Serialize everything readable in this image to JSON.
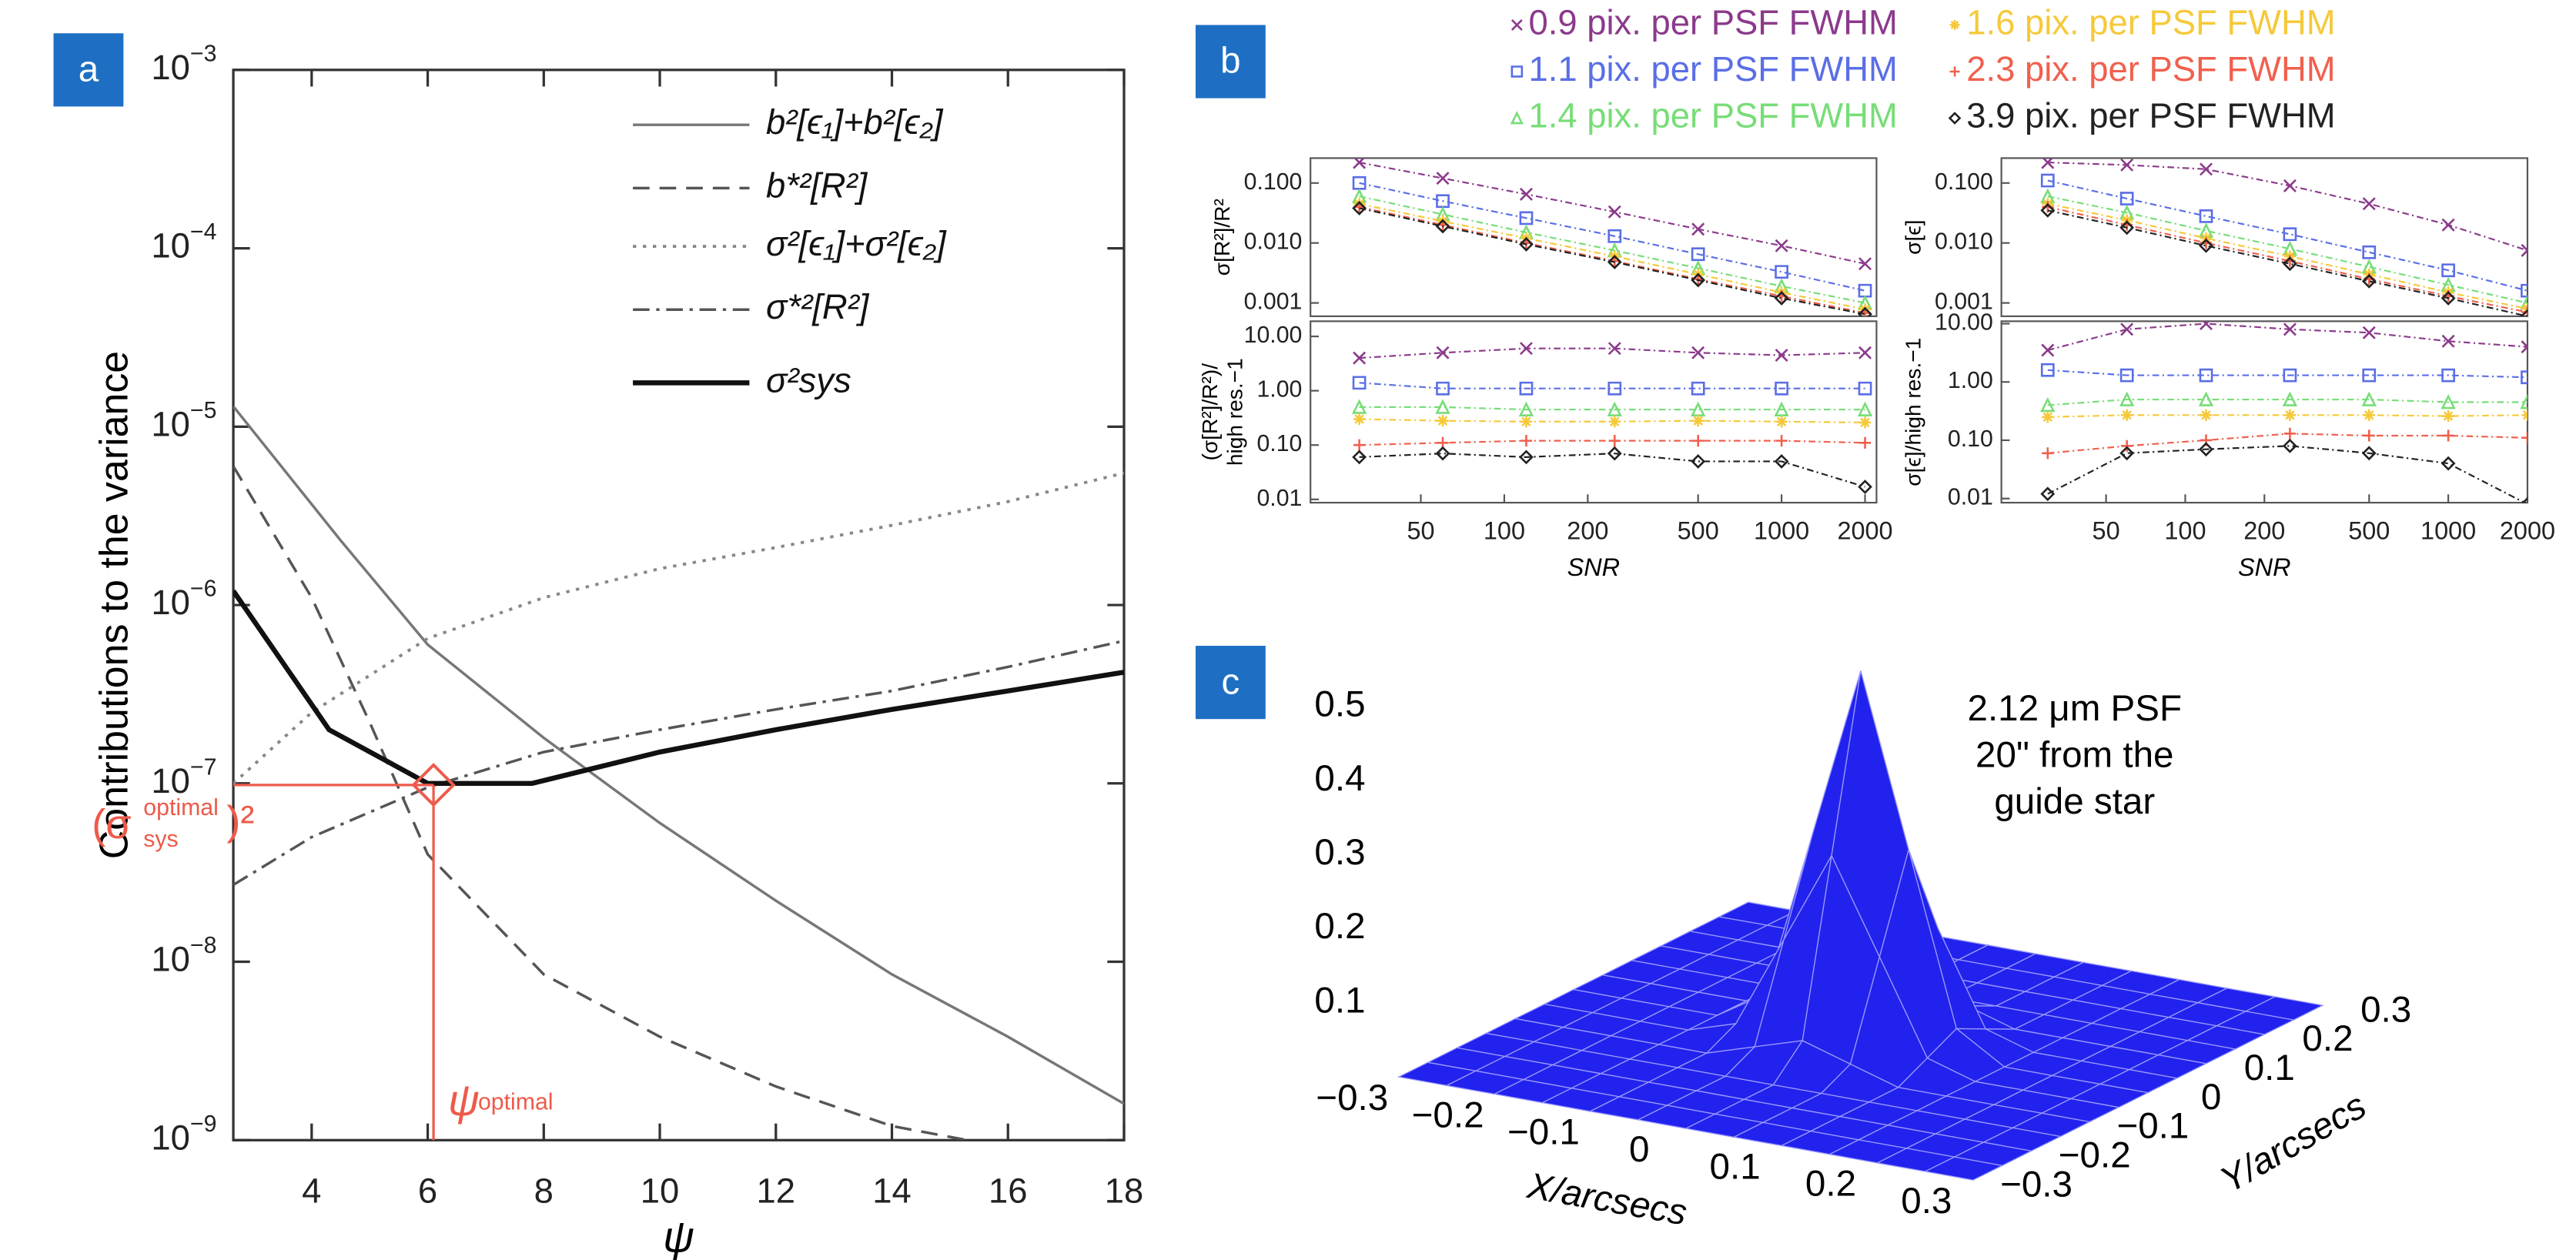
{
  "chart_data": [
    {
      "type": "line",
      "panel": "a",
      "xlabel": "ψ",
      "ylabel": "Contributions to the variance",
      "xlim": [
        2.65,
        18
      ],
      "ylim": [
        1e-09,
        0.001
      ],
      "log_y": true,
      "xticks": [
        4,
        6,
        8,
        10,
        12,
        14,
        16,
        18
      ],
      "yticks": [
        {
          "value": 0.001,
          "label": "10−3"
        },
        {
          "value": 0.0001,
          "label": "10−4"
        },
        {
          "value": 1e-05,
          "label": "10−5"
        },
        {
          "value": 1e-06,
          "label": "10−6"
        },
        {
          "value": 1e-07,
          "label": "10−7"
        },
        {
          "value": 1e-08,
          "label": "10−8"
        },
        {
          "value": 1e-09,
          "label": "10−9"
        }
      ],
      "series": [
        {
          "name": "b²[ϵ₁]+b²[ϵ₂]",
          "color": "#777777",
          "dash": "solid",
          "width": 1.6,
          "x": [
            2.65,
            4.5,
            6,
            8,
            10,
            12,
            14,
            16,
            18
          ],
          "values": [
            1.3e-05,
            2.3e-06,
            6e-07,
            1.8e-07,
            6e-08,
            2.2e-08,
            8.5e-09,
            3.8e-09,
            1.6e-09
          ]
        },
        {
          "name": "b*²[R²]",
          "color": "#555555",
          "dash": "dashed",
          "width": 1.6,
          "x": [
            2.65,
            4,
            5,
            6,
            8,
            10,
            12,
            14,
            15.3
          ],
          "values": [
            6e-06,
            1.1e-06,
            2.2e-07,
            4e-08,
            8.5e-09,
            3.8e-09,
            2e-09,
            1.2e-09,
            1e-09
          ]
        },
        {
          "name": "σ²[ϵ₁]+σ²[ϵ₂]",
          "color": "#888888",
          "dash": "dotted",
          "width": 1.8,
          "x": [
            2.65,
            4,
            6,
            8,
            10,
            12,
            14,
            16,
            18
          ],
          "values": [
            1e-07,
            2.5e-07,
            6.5e-07,
            1.1e-06,
            1.6e-06,
            2.1e-06,
            2.8e-06,
            3.8e-06,
            5.5e-06
          ]
        },
        {
          "name": "σ*²[R²]",
          "color": "#555555",
          "dash": "dashdot",
          "width": 1.6,
          "x": [
            2.65,
            4,
            6,
            8,
            10,
            12,
            14,
            16,
            18
          ],
          "values": [
            2.7e-08,
            5e-08,
            9.5e-08,
            1.5e-07,
            2e-07,
            2.6e-07,
            3.3e-07,
            4.5e-07,
            6.3e-07
          ]
        },
        {
          "name": "σ²sys",
          "color": "#111111",
          "dash": "solid",
          "width": 3,
          "x": [
            2.65,
            4.3,
            6,
            7.8,
            10,
            12,
            14,
            16,
            18
          ],
          "values": [
            1.2e-06,
            2e-07,
            1e-07,
            1e-07,
            1.5e-07,
            2e-07,
            2.6e-07,
            3.3e-07,
            4.2e-07
          ]
        }
      ],
      "optimum": {
        "x": 6.1,
        "y": 9.8e-08,
        "color": "#ee5a4a"
      },
      "annotations": [
        {
          "text": "(σ",
          "sup": "optimal",
          "sub": "sys",
          "tail": ")²"
        },
        {
          "text": "ψ",
          "sub": "optimal"
        }
      ]
    },
    {
      "type": "line",
      "panel": "b",
      "legend": "top",
      "ylabel": [
        "σ[R²]/R²"
      ],
      "xlim": [
        20,
        2200
      ],
      "ylim": [
        0.0006,
        0.26
      ],
      "log_x": true,
      "log_y": true,
      "yticks": [
        {
          "value": 0.001,
          "label": "0.001"
        },
        {
          "value": 0.01,
          "label": "0.010"
        },
        {
          "value": 0.1,
          "label": "0.100"
        }
      ],
      "x": [
        30,
        60,
        120,
        250,
        500,
        1000,
        2000
      ],
      "series": [
        {
          "name": "0.9 pix. per PSF FWHM",
          "color": "#8b3a8b",
          "marker": "x",
          "values": [
            0.22,
            0.12,
            0.065,
            0.033,
            0.017,
            0.009,
            0.0045
          ]
        },
        {
          "name": "1.1 pix. per PSF FWHM",
          "color": "#5a6ee6",
          "marker": "square",
          "values": [
            0.1,
            0.05,
            0.026,
            0.013,
            0.0065,
            0.0033,
            0.0016
          ]
        },
        {
          "name": "1.4 pix. per PSF FWHM",
          "color": "#77dd77",
          "marker": "triangle",
          "values": [
            0.06,
            0.03,
            0.015,
            0.0075,
            0.0038,
            0.0019,
            0.001
          ]
        },
        {
          "name": "1.6 pix. per PSF FWHM",
          "color": "#f5c93a",
          "marker": "star",
          "values": [
            0.045,
            0.023,
            0.012,
            0.006,
            0.003,
            0.0015,
            0.00078
          ]
        },
        {
          "name": "2.3 pix. per PSF FWHM",
          "color": "#f0604e",
          "marker": "plus",
          "values": [
            0.04,
            0.02,
            0.01,
            0.005,
            0.0025,
            0.0013,
            0.00068
          ]
        },
        {
          "name": "3.9 pix. per PSF FWHM",
          "color": "#222222",
          "marker": "diamond",
          "values": [
            0.038,
            0.019,
            0.0095,
            0.0048,
            0.0024,
            0.0012,
            0.00065
          ]
        }
      ]
    },
    {
      "type": "line",
      "ylabel": [
        "(σ[R²]/R²)/",
        "high res.−1"
      ],
      "xlabel": "SNR",
      "xlim": [
        20,
        2200
      ],
      "ylim": [
        0.0087,
        19
      ],
      "log_x": true,
      "log_y": true,
      "xticks": [
        50,
        100,
        200,
        500,
        1000,
        2000
      ],
      "yticks": [
        {
          "value": 0.01,
          "label": "0.01"
        },
        {
          "value": 0.1,
          "label": "0.10"
        },
        {
          "value": 1,
          "label": "1.00"
        },
        {
          "value": 10,
          "label": "10.00"
        }
      ],
      "x": [
        30,
        60,
        120,
        250,
        500,
        1000,
        2000
      ],
      "series": [
        {
          "color": "#8b3a8b",
          "marker": "x",
          "values": [
            4,
            5,
            6,
            6,
            5,
            4.5,
            5
          ]
        },
        {
          "color": "#5a6ee6",
          "marker": "square",
          "values": [
            1.4,
            1.1,
            1.1,
            1.1,
            1.1,
            1.1,
            1.1
          ]
        },
        {
          "color": "#77dd77",
          "marker": "triangle",
          "values": [
            0.5,
            0.5,
            0.45,
            0.45,
            0.45,
            0.45,
            0.45
          ]
        },
        {
          "color": "#f5c93a",
          "marker": "star",
          "values": [
            0.3,
            0.28,
            0.27,
            0.27,
            0.28,
            0.27,
            0.26
          ]
        },
        {
          "color": "#f0604e",
          "marker": "plus",
          "values": [
            0.1,
            0.11,
            0.12,
            0.12,
            0.12,
            0.12,
            0.11
          ]
        },
        {
          "color": "#222222",
          "marker": "diamond",
          "values": [
            0.06,
            0.07,
            0.06,
            0.07,
            0.05,
            0.05,
            0.017
          ]
        }
      ]
    },
    {
      "type": "line",
      "ylabel": [
        "σ[ϵ]"
      ],
      "xlim": [
        20,
        2000
      ],
      "ylim": [
        0.0006,
        0.26
      ],
      "log_x": true,
      "log_y": true,
      "yticks": [
        {
          "value": 0.001,
          "label": "0.001"
        },
        {
          "value": 0.01,
          "label": "0.010"
        },
        {
          "value": 0.1,
          "label": "0.100"
        }
      ],
      "x": [
        30,
        60,
        120,
        250,
        500,
        1000,
        2000
      ],
      "series": [
        {
          "color": "#8b3a8b",
          "marker": "x",
          "values": [
            0.22,
            0.2,
            0.17,
            0.09,
            0.045,
            0.02,
            0.0075
          ]
        },
        {
          "color": "#5a6ee6",
          "marker": "square",
          "values": [
            0.11,
            0.055,
            0.028,
            0.014,
            0.007,
            0.0035,
            0.0016
          ]
        },
        {
          "color": "#77dd77",
          "marker": "triangle",
          "values": [
            0.06,
            0.032,
            0.016,
            0.008,
            0.004,
            0.002,
            0.001
          ]
        },
        {
          "color": "#f5c93a",
          "marker": "star",
          "values": [
            0.045,
            0.024,
            0.012,
            0.006,
            0.003,
            0.0015,
            0.0008
          ]
        },
        {
          "color": "#f0604e",
          "marker": "plus",
          "values": [
            0.04,
            0.02,
            0.01,
            0.005,
            0.0025,
            0.0013,
            0.0007
          ]
        },
        {
          "color": "#222222",
          "marker": "diamond",
          "values": [
            0.035,
            0.018,
            0.009,
            0.0045,
            0.0023,
            0.0012,
            0.0006
          ]
        }
      ]
    },
    {
      "type": "line",
      "ylabel": [
        "σ[ϵ]/high res.−1"
      ],
      "xlabel": "SNR",
      "xlim": [
        20,
        2000
      ],
      "ylim": [
        0.0085,
        11
      ],
      "log_x": true,
      "log_y": true,
      "xticks": [
        50,
        100,
        200,
        500,
        1000,
        2000
      ],
      "yticks": [
        {
          "value": 0.01,
          "label": "0.01"
        },
        {
          "value": 0.1,
          "label": "0.10"
        },
        {
          "value": 1,
          "label": "1.00"
        },
        {
          "value": 10,
          "label": "10.00"
        }
      ],
      "x": [
        30,
        60,
        120,
        250,
        500,
        1000,
        2000
      ],
      "series": [
        {
          "color": "#8b3a8b",
          "marker": "x",
          "values": [
            3.5,
            8,
            10,
            8,
            7,
            5,
            4
          ]
        },
        {
          "color": "#5a6ee6",
          "marker": "square",
          "values": [
            1.6,
            1.3,
            1.3,
            1.3,
            1.3,
            1.3,
            1.2
          ]
        },
        {
          "color": "#77dd77",
          "marker": "triangle",
          "values": [
            0.4,
            0.5,
            0.5,
            0.5,
            0.5,
            0.45,
            0.45
          ]
        },
        {
          "color": "#f5c93a",
          "marker": "star",
          "values": [
            0.25,
            0.27,
            0.27,
            0.27,
            0.27,
            0.26,
            0.27
          ]
        },
        {
          "color": "#f0604e",
          "marker": "plus",
          "values": [
            0.06,
            0.08,
            0.1,
            0.13,
            0.12,
            0.12,
            0.11
          ]
        },
        {
          "color": "#222222",
          "marker": "diamond",
          "values": [
            0.012,
            0.06,
            0.07,
            0.08,
            0.06,
            0.04,
            0.008
          ]
        }
      ]
    },
    {
      "type": "surface",
      "panel": "c",
      "xlabel": "X/arcsecs",
      "ylabel": "Y/arcsecs",
      "annotation": [
        "2.12 μm PSF",
        "20\" from the",
        "guide star"
      ],
      "color": "#2222ee",
      "xlim": [
        -0.3,
        0.3
      ],
      "ylim": [
        -0.3,
        0.3
      ],
      "zlim": [
        0,
        0.5
      ],
      "xticks": [
        {
          "value": -0.3,
          "label": "−0.3"
        },
        {
          "value": -0.2,
          "label": "−0.2"
        },
        {
          "value": -0.1,
          "label": "−0.1"
        },
        0,
        0.1,
        0.2,
        0.3
      ],
      "yticks": [
        {
          "value": -0.3,
          "label": "−0.3"
        },
        {
          "value": -0.2,
          "label": "−0.2"
        },
        {
          "value": -0.1,
          "label": "−0.1"
        },
        0,
        0.1,
        0.2,
        0.3
      ],
      "zticks": [
        0.1,
        0.2,
        0.3,
        0.4,
        0.5
      ],
      "x": [
        -0.3,
        -0.25,
        -0.2,
        -0.15,
        -0.1,
        -0.05,
        0,
        0.05,
        0.1,
        0.15,
        0.2,
        0.25,
        0.3
      ],
      "y": [
        -0.3,
        -0.25,
        -0.2,
        -0.15,
        -0.1,
        -0.05,
        0,
        0.05,
        0.1,
        0.15,
        0.2,
        0.25,
        0.3
      ],
      "z": [
        [
          0,
          0,
          0,
          0,
          0,
          0,
          0,
          0,
          0,
          0,
          0,
          0,
          0
        ],
        [
          0,
          0,
          0,
          0,
          0,
          0,
          0,
          0,
          0,
          0,
          0,
          0,
          0
        ],
        [
          0,
          0,
          0,
          0,
          0,
          0,
          0,
          0,
          0,
          0,
          0,
          0,
          0
        ],
        [
          0,
          0,
          0,
          0,
          0,
          0,
          0,
          0,
          0,
          0,
          0,
          0,
          0
        ],
        [
          0,
          0,
          0,
          0,
          0,
          0.02,
          0.04,
          0.02,
          0,
          0,
          0,
          0,
          0
        ],
        [
          0,
          0,
          0,
          0,
          0.02,
          0.145,
          0.27,
          0.145,
          0.02,
          0,
          0,
          0,
          0
        ],
        [
          0,
          0,
          0,
          0,
          0.04,
          0.27,
          0.5,
          0.27,
          0.04,
          0,
          0,
          0,
          0
        ],
        [
          0,
          0,
          0,
          0,
          0.02,
          0.145,
          0.27,
          0.145,
          0.02,
          0,
          0,
          0,
          0
        ],
        [
          0,
          0,
          0,
          0,
          0,
          0.02,
          0.04,
          0.02,
          0,
          0,
          0,
          0,
          0
        ],
        [
          0,
          0,
          0,
          0,
          0,
          0,
          0,
          0,
          0,
          0,
          0,
          0,
          0
        ],
        [
          0,
          0,
          0,
          0,
          0,
          0,
          0,
          0,
          0,
          0,
          0,
          0,
          0
        ],
        [
          0,
          0,
          0,
          0,
          0,
          0,
          0,
          0,
          0,
          0,
          0,
          0,
          0
        ],
        [
          0,
          0,
          0,
          0,
          0,
          0,
          0,
          0,
          0,
          0,
          0,
          0,
          0
        ]
      ]
    }
  ]
}
